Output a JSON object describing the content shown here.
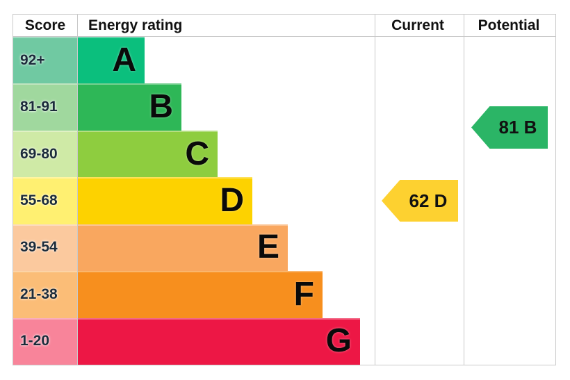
{
  "header": {
    "score_label": "Score",
    "energy_rating_label": "Energy rating",
    "current_label": "Current",
    "potential_label": "Potential"
  },
  "chart_data": {
    "type": "bar",
    "title": "Energy efficiency rating chart (EPC)",
    "categories": [
      "A",
      "B",
      "C",
      "D",
      "E",
      "F",
      "G"
    ],
    "bands": [
      {
        "letter": "A",
        "score_range": "92+",
        "band_color": "#0bbf7d",
        "cell_color": "#70c9a2",
        "band_width": 97
      },
      {
        "letter": "B",
        "score_range": "81-91",
        "band_color": "#2eb757",
        "cell_color": "#a0d89e",
        "band_width": 150
      },
      {
        "letter": "C",
        "score_range": "69-80",
        "band_color": "#8ecd3f",
        "cell_color": "#cfeaa6",
        "band_width": 202
      },
      {
        "letter": "D",
        "score_range": "55-68",
        "band_color": "#fdd200",
        "cell_color": "#fff071",
        "band_width": 252
      },
      {
        "letter": "E",
        "score_range": "39-54",
        "band_color": "#f9a75f",
        "cell_color": "#fbc99e",
        "band_width": 303
      },
      {
        "letter": "F",
        "score_range": "21-38",
        "band_color": "#f78f1e",
        "cell_color": "#fbbd77",
        "band_width": 353
      },
      {
        "letter": "G",
        "score_range": "1-20",
        "band_color": "#ed1745",
        "cell_color": "#f8849a",
        "band_width": 407
      }
    ],
    "current": {
      "score": 62,
      "rating": "D",
      "label": "62 D",
      "arrow_color": "#fdd130"
    },
    "potential": {
      "score": 81,
      "rating": "B",
      "label": "81 B",
      "arrow_color": "#2bb566"
    }
  }
}
